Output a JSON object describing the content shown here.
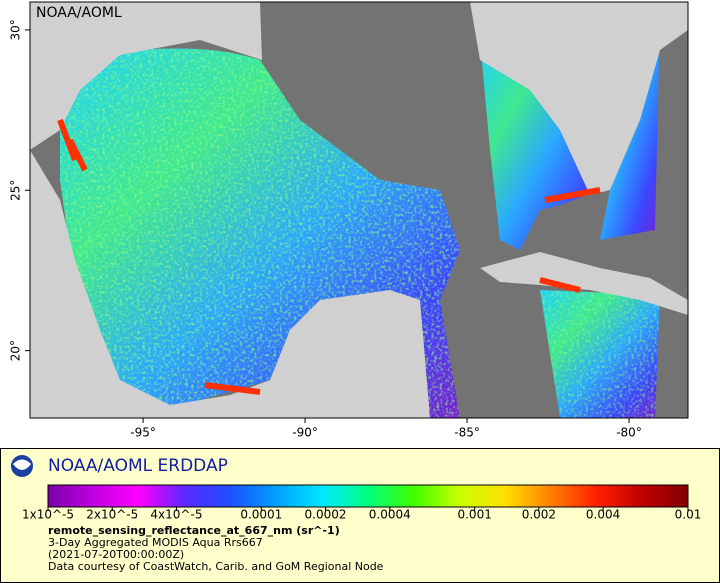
{
  "map": {
    "watermark": "NOAA/AOML",
    "xlim": [
      -98.49,
      -78.18
    ],
    "ylim": [
      17.9,
      30.87
    ],
    "xticks": [
      {
        "value": -95,
        "label": "-95°"
      },
      {
        "value": -90,
        "label": "-90°"
      },
      {
        "value": -85,
        "label": "-85°"
      },
      {
        "value": -80,
        "label": "-80°"
      }
    ],
    "yticks": [
      {
        "value": 20,
        "label": "20°"
      },
      {
        "value": 25,
        "label": "25°"
      },
      {
        "value": 30,
        "label": "30°"
      }
    ]
  },
  "legend": {
    "org": "NOAA/AOML ERDDAP",
    "colorbar": {
      "scale": "log",
      "lim": [
        1e-05,
        0.01
      ],
      "colors": [
        "#7a00a8",
        "#c000e0",
        "#ff00ff",
        "#5a28ff",
        "#1e50ff",
        "#00a0ff",
        "#00e8ff",
        "#00ff80",
        "#40ff00",
        "#c8ff00",
        "#ffe000",
        "#ff8000",
        "#ff2000",
        "#c00000",
        "#800000"
      ],
      "ticks": [
        {
          "value": 1e-05,
          "label": "1x10^-5"
        },
        {
          "value": 2e-05,
          "label": "2x10^-5"
        },
        {
          "value": 4e-05,
          "label": "4x10^-5"
        },
        {
          "value": 0.0001,
          "label": "0.0001"
        },
        {
          "value": 0.0002,
          "label": "0.0002"
        },
        {
          "value": 0.0004,
          "label": "0.0004"
        },
        {
          "value": 0.001,
          "label": "0.001"
        },
        {
          "value": 0.002,
          "label": "0.002"
        },
        {
          "value": 0.004,
          "label": "0.004"
        },
        {
          "value": 0.01,
          "label": "0.01"
        }
      ]
    },
    "variable": "remote_sensing_reflectance_at_667_nm (sr^-1)",
    "description": [
      "3-Day Aggregated MODIS Aqua Rrs667",
      "(2021-07-20T00:00:00Z)",
      "Data courtesy of CoastWatch, Carib. and GoM Regional Node"
    ]
  }
}
